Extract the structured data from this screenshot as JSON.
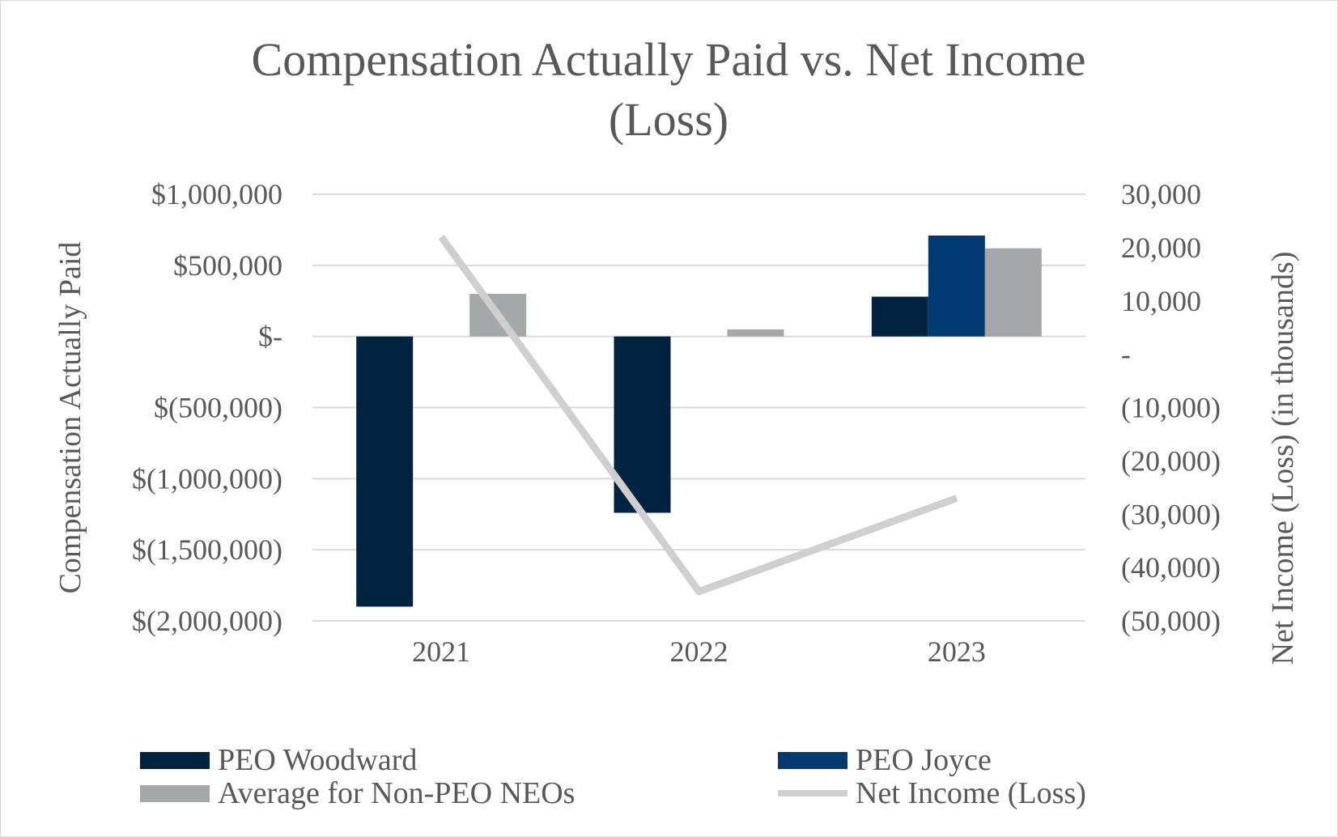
{
  "chart_data": {
    "type": "bar",
    "title_lines": [
      "Compensation Actually Paid vs. Net Income",
      "(Loss)"
    ],
    "categories": [
      "2021",
      "2022",
      "2023"
    ],
    "y_left": {
      "label": "Compensation Actually Paid",
      "range": [
        -2000000,
        1000000
      ],
      "tick_values": [
        1000000,
        500000,
        0,
        -500000,
        -1000000,
        -1500000,
        -2000000
      ],
      "tick_labels": [
        "$1,000,000",
        "$500,000",
        "$-",
        "$(500,000)",
        "$(1,000,000)",
        "$(1,500,000)",
        "$(2,000,000)"
      ]
    },
    "y_right": {
      "label": "Net Income (Loss) (in thousands)",
      "range": [
        -50000,
        30000
      ],
      "tick_values": [
        30000,
        20000,
        10000,
        0,
        -10000,
        -20000,
        -30000,
        -40000,
        -50000
      ],
      "tick_labels": [
        "30,000",
        "20,000",
        "10,000",
        "-",
        "(10,000)",
        "(20,000)",
        "(30,000)",
        "(40,000)",
        "(50,000)"
      ]
    },
    "series": [
      {
        "name": "PEO Woodward",
        "kind": "bar",
        "axis": "left",
        "color": "#002340",
        "values": [
          -1900000,
          -1240000,
          280000
        ]
      },
      {
        "name": "PEO Joyce",
        "kind": "bar",
        "axis": "left",
        "color": "#003a70",
        "values": [
          null,
          null,
          710000
        ]
      },
      {
        "name": "Average for Non-PEO NEOs",
        "kind": "bar",
        "axis": "left",
        "color": "#a5a7a8",
        "values": [
          300000,
          50000,
          620000
        ]
      },
      {
        "name": "Net Income (Loss)",
        "kind": "line",
        "axis": "right",
        "color": "#cfcfcf",
        "values": [
          22000,
          -44500,
          -27000
        ]
      }
    ],
    "grid": true,
    "legend_position": "bottom"
  }
}
